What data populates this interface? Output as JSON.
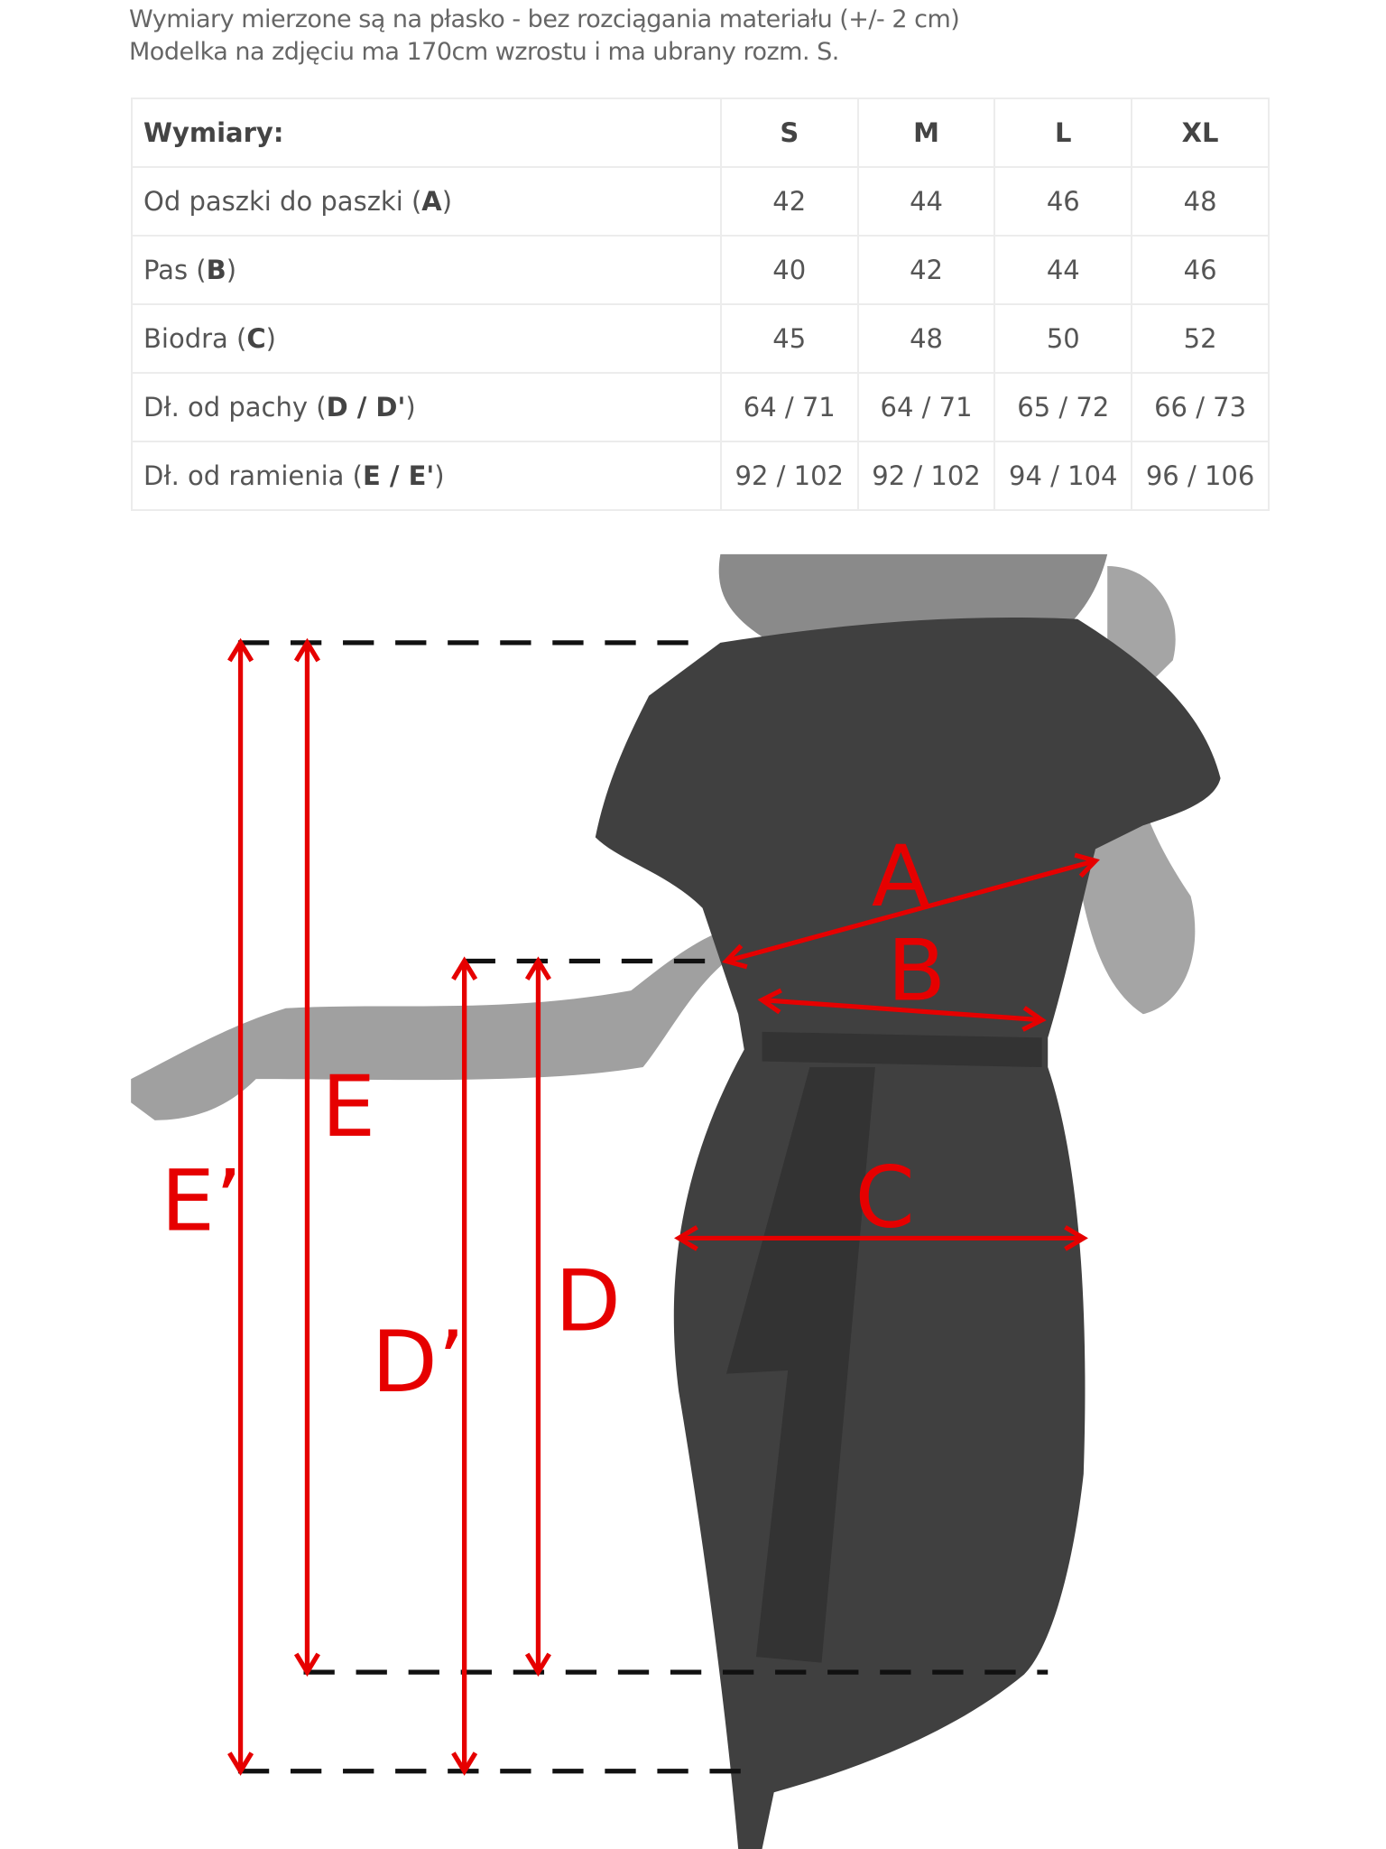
{
  "notes": [
    "Wymiary mierzone są na płasko - bez rozciągania materiału (+/- 2 cm)",
    "Modelka na zdjęciu ma 170cm wzrostu i ma ubrany rozm. S."
  ],
  "table": {
    "header": {
      "label": "Wymiary:",
      "sizes": [
        "S",
        "M",
        "L",
        "XL"
      ]
    },
    "rows": [
      {
        "label": "Od paszki do paszki (",
        "code": "A",
        "suffix": ")",
        "values": [
          "42",
          "44",
          "46",
          "48"
        ]
      },
      {
        "label": "Pas (",
        "code": "B",
        "suffix": ")",
        "values": [
          "40",
          "42",
          "44",
          "46"
        ]
      },
      {
        "label": "Biodra (",
        "code": "C",
        "suffix": ")",
        "values": [
          "45",
          "48",
          "50",
          "52"
        ]
      },
      {
        "label": "Dł. od pachy (",
        "code": "D / D'",
        "suffix": ")",
        "values": [
          "64 / 71",
          "64 / 71",
          "65 / 72",
          "66 / 73"
        ]
      },
      {
        "label": "Dł. od ramienia (",
        "code": "E / E'",
        "suffix": ")",
        "values": [
          "92 / 102",
          "92 / 102",
          "94 / 104",
          "96 / 106"
        ]
      }
    ]
  },
  "diagram": {
    "labels": {
      "A": "A",
      "B": "B",
      "C": "C",
      "D": "D",
      "D2": "D’",
      "E": "E",
      "E2": "E’"
    },
    "colors": {
      "arrow": "#e60000",
      "dress": "#3f3f3f",
      "skin": "#9a9a9a"
    }
  }
}
